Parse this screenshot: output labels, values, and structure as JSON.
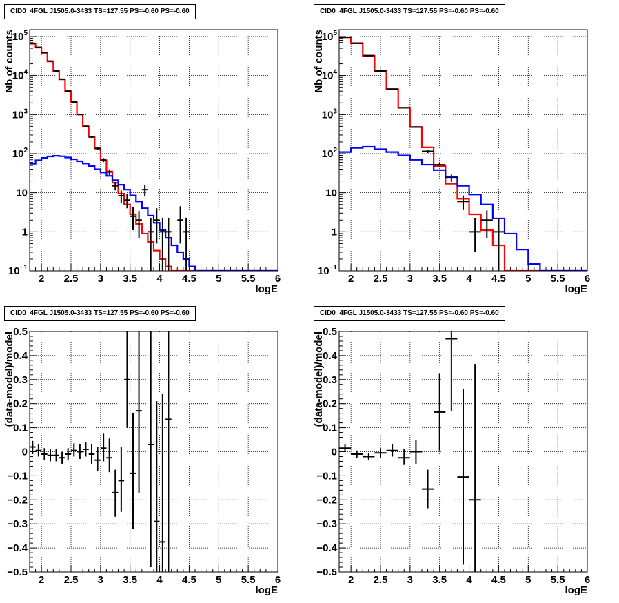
{
  "chart_data": [
    {
      "panel": "top-left",
      "type": "step-histogram-log",
      "title": "CID0_4FGL J1505.0-3433 TS=127.55 PS=-0.60 PS=-0.60",
      "xlabel": "logE",
      "ylabel": "Nb of counts",
      "xlim": [
        1.8,
        6.0
      ],
      "ylim": [
        0.1,
        150000
      ],
      "yscale": "log",
      "grid": true,
      "x_ticks": [
        "2",
        "2.5",
        "3",
        "3.5",
        "4",
        "4.5",
        "5",
        "5.5",
        "6"
      ],
      "y_ticks": [
        {
          "v": 0.1,
          "label": "10",
          "sup": "−1"
        },
        {
          "v": 1,
          "label": "1",
          "sup": ""
        },
        {
          "v": 10,
          "label": "10",
          "sup": ""
        },
        {
          "v": 100,
          "label": "10",
          "sup": "2"
        },
        {
          "v": 1000,
          "label": "10",
          "sup": "3"
        },
        {
          "v": 10000,
          "label": "10",
          "sup": "4"
        },
        {
          "v": 100000,
          "label": "10",
          "sup": "5"
        }
      ],
      "bin_edges": [
        1.8,
        1.9,
        2.0,
        2.1,
        2.2,
        2.3,
        2.4,
        2.5,
        2.6,
        2.7,
        2.8,
        2.9,
        3.0,
        3.1,
        3.2,
        3.3,
        3.4,
        3.5,
        3.6,
        3.7,
        3.8,
        3.9,
        4.0,
        4.1,
        4.2,
        4.3,
        4.4,
        4.5,
        4.6,
        4.7,
        4.8,
        4.9,
        5.0,
        5.1,
        5.2,
        5.3,
        5.4,
        5.5,
        5.6,
        5.7,
        5.8,
        5.9,
        6.0
      ],
      "series": [
        {
          "name": "",
          "color": "#ff0000",
          "values": [
            65000,
            52000,
            38000,
            23000,
            13000,
            8000,
            4000,
            2100,
            1000,
            500,
            270,
            140,
            68,
            35,
            18,
            9.5,
            5,
            2.8,
            1.6,
            0.9,
            0.55,
            0.33,
            0.2,
            0.13,
            0.1,
            0.1,
            0.1,
            0.1,
            0.1,
            0.1,
            0.1,
            0.1,
            0.1,
            0.1,
            0.1,
            0.1,
            0.1,
            0.1,
            0.1,
            0.1,
            0.1,
            0.1
          ]
        },
        {
          "name": "",
          "color": "#0000ff",
          "values": [
            55,
            68,
            78,
            85,
            88,
            86,
            80,
            72,
            64,
            56,
            48,
            40,
            33,
            27,
            21,
            16,
            12,
            8.5,
            6,
            4,
            2.6,
            1.7,
            1.1,
            0.7,
            0.45,
            0.3,
            0.2,
            0.13,
            0.1,
            0.1,
            0.1,
            0.1,
            0.1,
            0.1,
            0.1,
            0.1,
            0.1,
            0.1,
            0.1,
            0.1,
            0.1,
            0.1
          ]
        }
      ],
      "points": [
        {
          "x": 1.85,
          "y": 67000,
          "lo": 66500,
          "hi": 67500,
          "hw": 0.05
        },
        {
          "x": 1.95,
          "y": 53000,
          "lo": 52500,
          "hi": 53500,
          "hw": 0.05
        },
        {
          "x": 2.05,
          "y": 39000,
          "lo": 38600,
          "hi": 39400,
          "hw": 0.05
        },
        {
          "x": 2.15,
          "y": 23500,
          "lo": 23200,
          "hi": 23800,
          "hw": 0.05
        },
        {
          "x": 2.25,
          "y": 13200,
          "lo": 13000,
          "hi": 13400,
          "hw": 0.05
        },
        {
          "x": 2.35,
          "y": 8100,
          "lo": 7950,
          "hi": 8250,
          "hw": 0.05
        },
        {
          "x": 2.45,
          "y": 4000,
          "lo": 3920,
          "hi": 4080,
          "hw": 0.05
        },
        {
          "x": 2.55,
          "y": 2100,
          "lo": 2050,
          "hi": 2150,
          "hw": 0.05
        },
        {
          "x": 2.65,
          "y": 1010,
          "lo": 980,
          "hi": 1040,
          "hw": 0.05
        },
        {
          "x": 2.75,
          "y": 500,
          "lo": 480,
          "hi": 520,
          "hw": 0.05
        },
        {
          "x": 2.85,
          "y": 268,
          "lo": 252,
          "hi": 284,
          "hw": 0.05
        },
        {
          "x": 2.95,
          "y": 135,
          "lo": 124,
          "hi": 146,
          "hw": 0.05
        },
        {
          "x": 3.05,
          "y": 69,
          "lo": 61,
          "hi": 77,
          "hw": 0.05
        },
        {
          "x": 3.15,
          "y": 34,
          "lo": 28.5,
          "hi": 39.5,
          "hw": 0.05
        },
        {
          "x": 3.25,
          "y": 15,
          "lo": 11.5,
          "hi": 19,
          "hw": 0.05
        },
        {
          "x": 3.35,
          "y": 8.4,
          "lo": 5.6,
          "hi": 11.4,
          "hw": 0.05
        },
        {
          "x": 3.45,
          "y": 6.5,
          "lo": 4,
          "hi": 9.5,
          "hw": 0.05
        },
        {
          "x": 3.55,
          "y": 2.5,
          "lo": 1.1,
          "hi": 4.2,
          "hw": 0.05
        },
        {
          "x": 3.65,
          "y": 2,
          "lo": 0.7,
          "hi": 3.4,
          "hw": 0.05
        },
        {
          "x": 3.75,
          "y": 12,
          "lo": 8,
          "hi": 16,
          "hw": 0.05
        },
        {
          "x": 3.85,
          "y": 1,
          "lo": 0.1,
          "hi": 2.2,
          "hw": 0.05
        },
        {
          "x": 3.95,
          "y": 2,
          "lo": 0.5,
          "hi": 4,
          "hw": 0.05
        },
        {
          "x": 4.05,
          "y": 1,
          "lo": 0.1,
          "hi": 2.3,
          "hw": 0.05
        },
        {
          "x": 4.15,
          "y": 1,
          "lo": 0.1,
          "hi": 2.3,
          "hw": 0.05
        },
        {
          "x": 4.35,
          "y": 2,
          "lo": 0.5,
          "hi": 4.5,
          "hw": 0.05
        },
        {
          "x": 4.45,
          "y": 1,
          "lo": 0.1,
          "hi": 2.3,
          "hw": 0.05
        }
      ]
    },
    {
      "panel": "top-right",
      "type": "step-histogram-log",
      "title": "CID0_4FGL J1505.0-3433 TS=127.55 PS=-0.60 PS=-0.60",
      "xlabel": "logE",
      "ylabel": "Nb of counts",
      "xlim": [
        1.8,
        6.0
      ],
      "ylim": [
        0.1,
        150000
      ],
      "yscale": "log",
      "grid": true,
      "x_ticks": [
        "2",
        "2.5",
        "3",
        "3.5",
        "4",
        "4.5",
        "5",
        "5.5",
        "6"
      ],
      "y_ticks": [
        {
          "v": 0.1,
          "label": "10",
          "sup": "−1"
        },
        {
          "v": 1,
          "label": "1",
          "sup": ""
        },
        {
          "v": 10,
          "label": "10",
          "sup": ""
        },
        {
          "v": 100,
          "label": "10",
          "sup": "2"
        },
        {
          "v": 1000,
          "label": "10",
          "sup": "3"
        },
        {
          "v": 10000,
          "label": "10",
          "sup": "4"
        },
        {
          "v": 100000,
          "label": "10",
          "sup": "5"
        }
      ],
      "bin_edges": [
        1.8,
        2.0,
        2.2,
        2.4,
        2.6,
        2.8,
        3.0,
        3.2,
        3.4,
        3.6,
        3.8,
        4.0,
        4.2,
        4.4,
        4.6,
        4.8,
        5.0,
        5.2,
        5.4,
        5.6,
        5.8,
        6.0
      ],
      "series": [
        {
          "name": "",
          "color": "#ff0000",
          "values": [
            95000,
            68000,
            32000,
            13000,
            4500,
            1500,
            480,
            145,
            48,
            17,
            7,
            2.8,
            1.1,
            0.45,
            0.1,
            0.1,
            0.1,
            0.1,
            0.1,
            0.1,
            0.1
          ]
        },
        {
          "name": "",
          "color": "#0000ff",
          "values": [
            110,
            140,
            150,
            130,
            110,
            90,
            70,
            52,
            38,
            25,
            15,
            9,
            5,
            2.2,
            0.9,
            0.35,
            0.15,
            0.1,
            0.1,
            0.1,
            0.1
          ]
        }
      ],
      "points": [
        {
          "x": 1.9,
          "y": 96000,
          "lo": 95500,
          "hi": 96500,
          "hw": 0.1
        },
        {
          "x": 2.1,
          "y": 67000,
          "lo": 66500,
          "hi": 67500,
          "hw": 0.1
        },
        {
          "x": 2.3,
          "y": 32500,
          "lo": 32100,
          "hi": 32900,
          "hw": 0.1
        },
        {
          "x": 2.5,
          "y": 13100,
          "lo": 12900,
          "hi": 13300,
          "hw": 0.1
        },
        {
          "x": 2.7,
          "y": 4500,
          "lo": 4430,
          "hi": 4570,
          "hw": 0.1
        },
        {
          "x": 2.9,
          "y": 1500,
          "lo": 1460,
          "hi": 1540,
          "hw": 0.1
        },
        {
          "x": 3.1,
          "y": 480,
          "lo": 458,
          "hi": 502,
          "hw": 0.1
        },
        {
          "x": 3.3,
          "y": 115,
          "lo": 104,
          "hi": 126,
          "hw": 0.1
        },
        {
          "x": 3.5,
          "y": 52,
          "lo": 45,
          "hi": 59,
          "hw": 0.1
        },
        {
          "x": 3.7,
          "y": 24,
          "lo": 19,
          "hi": 29,
          "hw": 0.1
        },
        {
          "x": 3.9,
          "y": 6,
          "lo": 3.6,
          "hi": 8.5,
          "hw": 0.1
        },
        {
          "x": 4.1,
          "y": 1,
          "lo": 0.3,
          "hi": 2.2,
          "hw": 0.1
        },
        {
          "x": 4.3,
          "y": 2,
          "lo": 0.7,
          "hi": 3.5,
          "hw": 0.1
        },
        {
          "x": 4.5,
          "y": 1,
          "lo": 0.1,
          "hi": 2.2,
          "hw": 0.1
        }
      ]
    },
    {
      "panel": "bottom-left",
      "type": "residuals",
      "title": "CID0_4FGL J1505.0-3433 TS=127.55 PS=-0.60 PS=-0.60",
      "xlabel": "logE",
      "ylabel": "(data-model)/model",
      "xlim": [
        1.8,
        6.0
      ],
      "ylim": [
        -0.5,
        0.5
      ],
      "grid": true,
      "x_ticks": [
        "2",
        "2.5",
        "3",
        "3.5",
        "4",
        "4.5",
        "5",
        "5.5",
        "6"
      ],
      "y_ticks": [
        "−0.5",
        "−0.4",
        "−0.3",
        "−0.2",
        "−0.1",
        "0",
        "0.1",
        "0.2",
        "0.3",
        "0.4",
        "0.5"
      ],
      "points": [
        {
          "x": 1.85,
          "y": 0.02,
          "lo": -0.01,
          "hi": 0.045,
          "hw": 0.05
        },
        {
          "x": 1.95,
          "y": 0.005,
          "lo": -0.02,
          "hi": 0.03,
          "hw": 0.05
        },
        {
          "x": 2.05,
          "y": -0.01,
          "lo": -0.035,
          "hi": 0.015,
          "hw": 0.05
        },
        {
          "x": 2.15,
          "y": -0.015,
          "lo": -0.04,
          "hi": 0.01,
          "hw": 0.05
        },
        {
          "x": 2.25,
          "y": -0.015,
          "lo": -0.04,
          "hi": 0.01,
          "hw": 0.05
        },
        {
          "x": 2.35,
          "y": -0.025,
          "lo": -0.05,
          "hi": 0.0,
          "hw": 0.05
        },
        {
          "x": 2.45,
          "y": -0.01,
          "lo": -0.035,
          "hi": 0.015,
          "hw": 0.05
        },
        {
          "x": 2.55,
          "y": 0.005,
          "lo": -0.02,
          "hi": 0.035,
          "hw": 0.05
        },
        {
          "x": 2.65,
          "y": 0.0,
          "lo": -0.03,
          "hi": 0.03,
          "hw": 0.05
        },
        {
          "x": 2.75,
          "y": 0.01,
          "lo": -0.02,
          "hi": 0.04,
          "hw": 0.05
        },
        {
          "x": 2.85,
          "y": -0.01,
          "lo": -0.05,
          "hi": 0.03,
          "hw": 0.05
        },
        {
          "x": 2.95,
          "y": -0.035,
          "lo": -0.08,
          "hi": 0.02,
          "hw": 0.05
        },
        {
          "x": 3.05,
          "y": 0.015,
          "lo": -0.04,
          "hi": 0.075,
          "hw": 0.05
        },
        {
          "x": 3.15,
          "y": -0.025,
          "lo": -0.085,
          "hi": 0.055,
          "hw": 0.05
        },
        {
          "x": 3.25,
          "y": -0.17,
          "lo": -0.27,
          "hi": -0.075,
          "hw": 0.05
        },
        {
          "x": 3.35,
          "y": -0.12,
          "lo": -0.25,
          "hi": 0.02,
          "hw": 0.05
        },
        {
          "x": 3.45,
          "y": 0.3,
          "lo": 0.1,
          "hi": 0.5,
          "hw": 0.05
        },
        {
          "x": 3.55,
          "y": -0.09,
          "lo": -0.32,
          "hi": 0.16,
          "hw": 0.05
        },
        {
          "x": 3.65,
          "y": 0.17,
          "lo": -0.17,
          "hi": 0.5,
          "hw": 0.05
        },
        {
          "x": 3.85,
          "y": 0.03,
          "lo": -0.48,
          "hi": 0.5,
          "hw": 0.05
        },
        {
          "x": 3.95,
          "y": -0.29,
          "lo": -0.5,
          "hi": 0.21,
          "hw": 0.05
        },
        {
          "x": 4.05,
          "y": -0.375,
          "lo": -0.5,
          "hi": 0.24,
          "hw": 0.05
        },
        {
          "x": 4.15,
          "y": 0.135,
          "lo": -0.5,
          "hi": 0.5,
          "hw": 0.05
        }
      ]
    },
    {
      "panel": "bottom-right",
      "type": "residuals",
      "title": "CID0_4FGL J1505.0-3433 TS=127.55 PS=-0.60 PS=-0.60",
      "xlabel": "logE",
      "ylabel": "(data-model)/model",
      "xlim": [
        1.8,
        6.0
      ],
      "ylim": [
        -0.5,
        0.5
      ],
      "grid": true,
      "x_ticks": [
        "2",
        "2.5",
        "3",
        "3.5",
        "4",
        "4.5",
        "5",
        "5.5",
        "6"
      ],
      "y_ticks": [
        "−0.5",
        "−0.4",
        "−0.3",
        "−0.2",
        "−0.1",
        "0",
        "0.1",
        "0.2",
        "0.3",
        "0.4",
        "0.5"
      ],
      "points": [
        {
          "x": 1.9,
          "y": 0.015,
          "lo": 0.0,
          "hi": 0.03,
          "hw": 0.1
        },
        {
          "x": 2.1,
          "y": -0.01,
          "lo": -0.025,
          "hi": 0.005,
          "hw": 0.1
        },
        {
          "x": 2.3,
          "y": -0.02,
          "lo": -0.035,
          "hi": -0.005,
          "hw": 0.1
        },
        {
          "x": 2.5,
          "y": -0.005,
          "lo": -0.025,
          "hi": 0.015,
          "hw": 0.1
        },
        {
          "x": 2.7,
          "y": 0.005,
          "lo": -0.02,
          "hi": 0.03,
          "hw": 0.1
        },
        {
          "x": 2.9,
          "y": -0.025,
          "lo": -0.055,
          "hi": 0.01,
          "hw": 0.1
        },
        {
          "x": 3.1,
          "y": 0.0,
          "lo": -0.05,
          "hi": 0.05,
          "hw": 0.1
        },
        {
          "x": 3.3,
          "y": -0.155,
          "lo": -0.235,
          "hi": -0.075,
          "hw": 0.1
        },
        {
          "x": 3.5,
          "y": 0.165,
          "lo": 0.005,
          "hi": 0.325,
          "hw": 0.1
        },
        {
          "x": 3.7,
          "y": 0.47,
          "lo": 0.17,
          "hi": 0.5,
          "hw": 0.1
        },
        {
          "x": 3.9,
          "y": -0.105,
          "lo": -0.47,
          "hi": 0.26,
          "hw": 0.1
        },
        {
          "x": 4.1,
          "y": -0.2,
          "lo": -0.5,
          "hi": 0.365,
          "hw": 0.1
        }
      ]
    }
  ]
}
